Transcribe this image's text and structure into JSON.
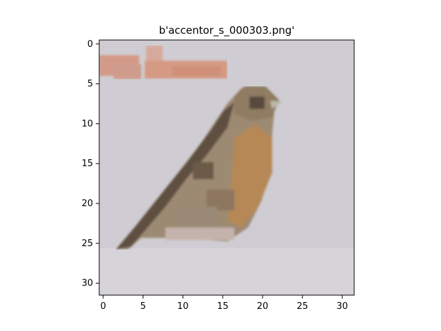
{
  "title": "b'accentor_s_000303.png'",
  "image": {
    "grid_size": 32,
    "description": "low-resolution 32x32 photo of a small brown streaked bird (accentor) perched diagonally on a pale grey background; pinkish-orange blurred marks near the top-left"
  },
  "axes": {
    "x_ticks": [
      0,
      5,
      10,
      15,
      20,
      25,
      30
    ],
    "y_ticks": [
      0,
      5,
      10,
      15,
      20,
      25,
      30
    ],
    "xlim": [
      -0.5,
      31.5
    ],
    "ylim": [
      31.5,
      -0.5
    ]
  },
  "colors": {
    "background": "#cfcdd3",
    "bird_dark": "#5e4e3e",
    "bird_mid": "#8a765c",
    "bird_orange": "#b48858",
    "top_mark": "#d49a86"
  }
}
